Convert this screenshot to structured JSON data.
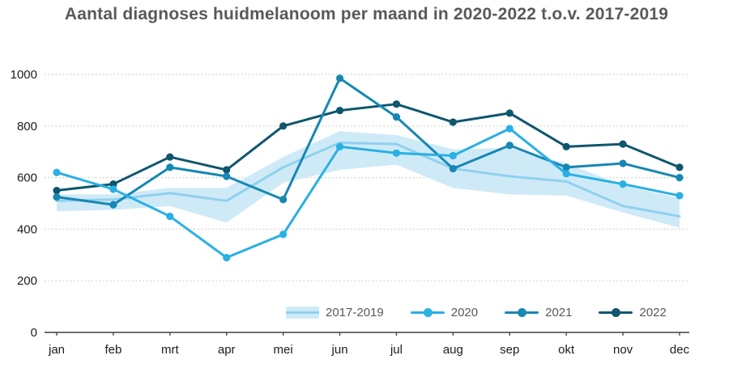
{
  "title": "Aantal diagnoses huidmelanoom per maand in 2020-2022 t.o.v. 2017-2019",
  "chart_data": {
    "type": "line",
    "title": "Aantal diagnoses huidmelanoom per maand in 2020-2022 t.o.v. 2017-2019",
    "categories": [
      "jan",
      "feb",
      "mrt",
      "apr",
      "mei",
      "jun",
      "jul",
      "aug",
      "sep",
      "okt",
      "nov",
      "dec"
    ],
    "ylim": [
      0,
      1000
    ],
    "yticks": [
      0,
      200,
      400,
      600,
      800,
      1000
    ],
    "grid": "dotted-horizontal",
    "legend_position": "bottom-right-inside",
    "band": {
      "name": "2017-2019",
      "fill_color": "#cfeaf7",
      "line_color": "#8fd1ee",
      "upper": [
        535,
        535,
        560,
        560,
        680,
        780,
        765,
        710,
        715,
        655,
        570,
        520
      ],
      "mid": [
        510,
        515,
        540,
        510,
        640,
        735,
        730,
        635,
        605,
        585,
        490,
        450
      ],
      "lower": [
        470,
        475,
        490,
        425,
        580,
        630,
        650,
        560,
        535,
        530,
        465,
        405
      ]
    },
    "series": [
      {
        "name": "2020",
        "color": "#29b0e5",
        "values": [
          620,
          555,
          450,
          290,
          380,
          720,
          695,
          685,
          790,
          615,
          575,
          530
        ]
      },
      {
        "name": "2021",
        "color": "#1787b3",
        "values": [
          525,
          495,
          640,
          605,
          515,
          985,
          835,
          635,
          725,
          640,
          655,
          600
        ]
      },
      {
        "name": "2022",
        "color": "#0f566e",
        "values": [
          550,
          575,
          680,
          630,
          800,
          860,
          885,
          815,
          850,
          720,
          730,
          640
        ]
      }
    ],
    "axis_color": "#3f3f3f",
    "grid_color": "#c8c8c8",
    "tick_label_color": "#1c1c1c"
  }
}
